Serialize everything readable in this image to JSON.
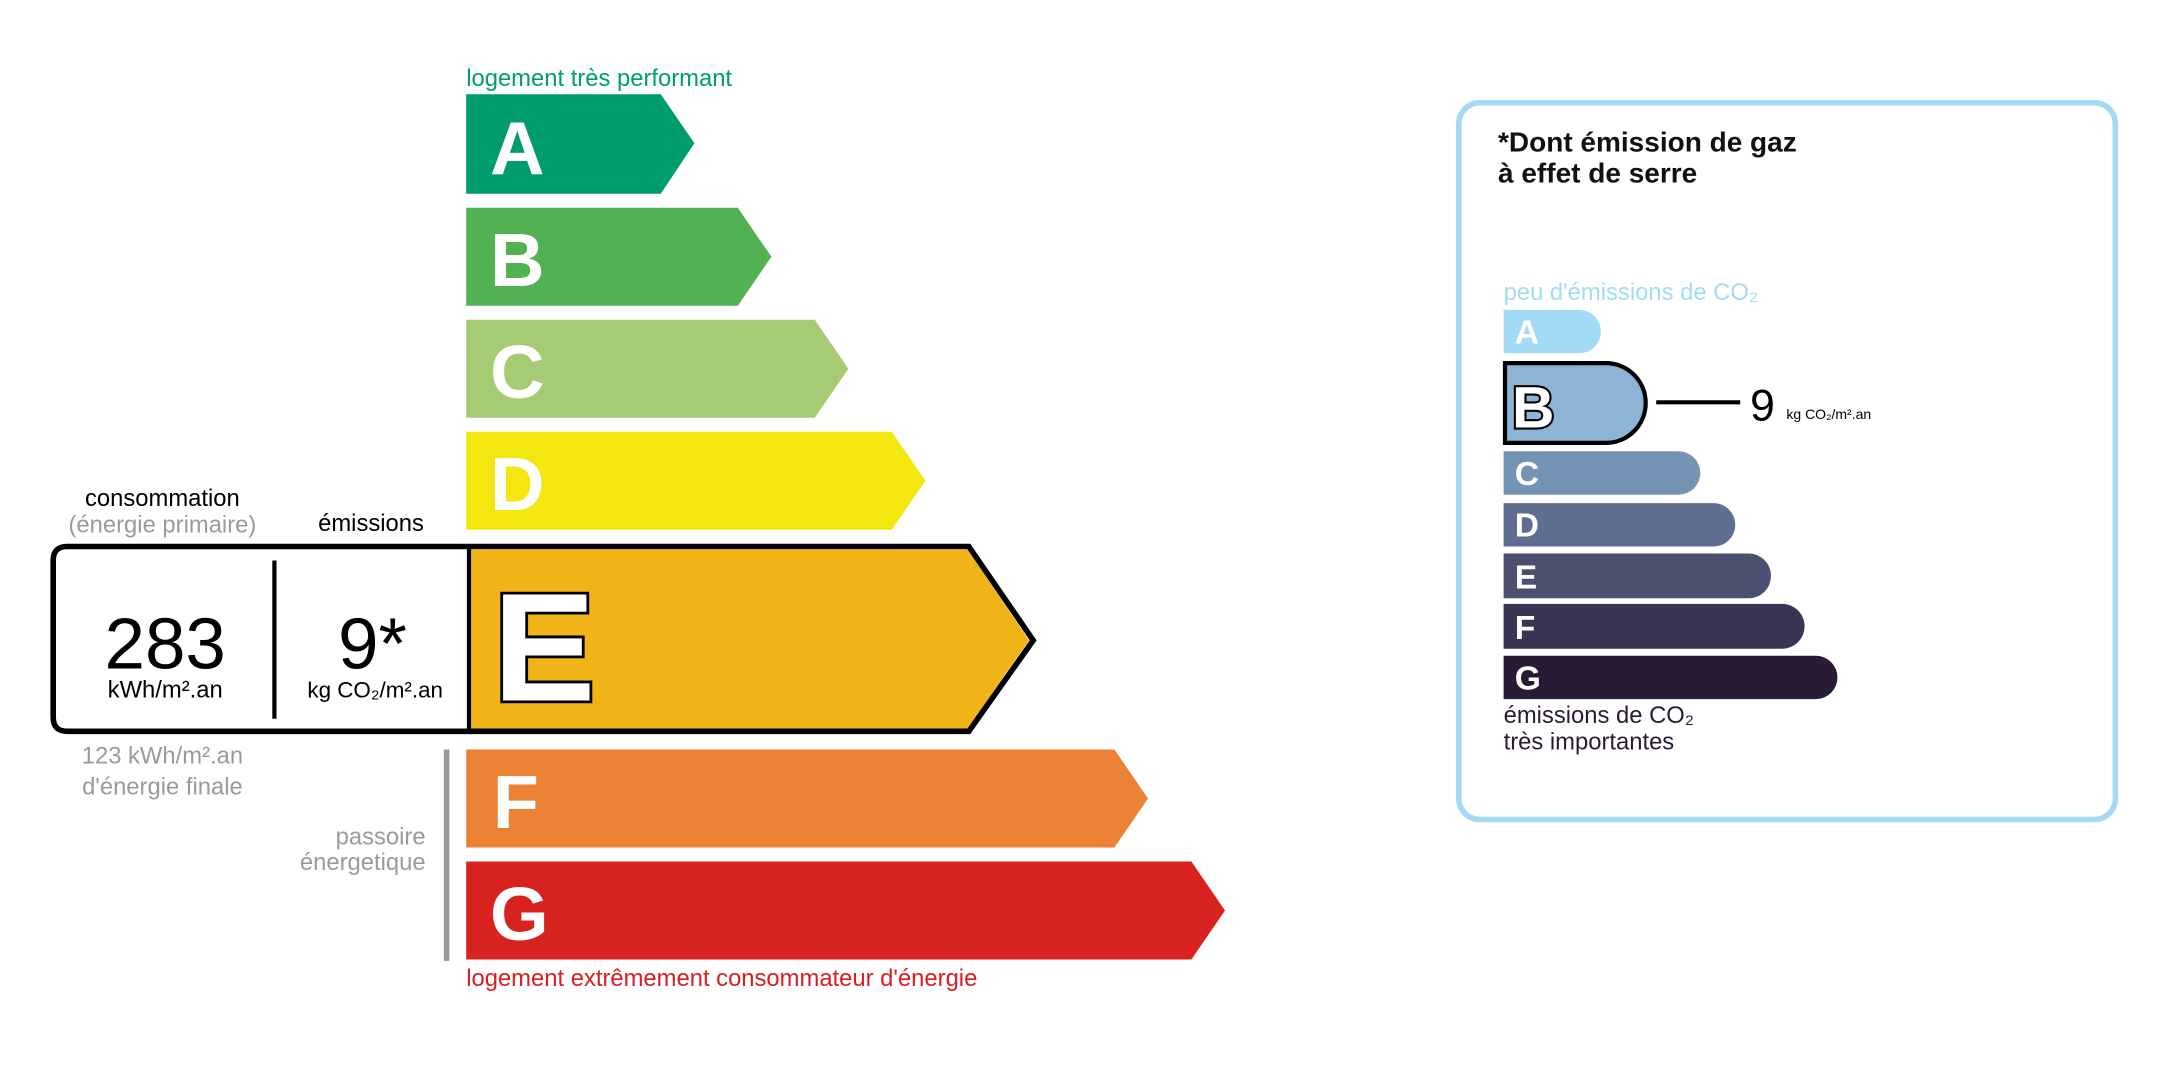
{
  "energy": {
    "top_label": "logement très performant",
    "bottom_label": "logement extrêmement consommateur d'énergie",
    "classes": [
      {
        "letter": "A",
        "color": "#009c6d"
      },
      {
        "letter": "B",
        "color": "#52b153"
      },
      {
        "letter": "C",
        "color": "#a5cc74"
      },
      {
        "letter": "D",
        "color": "#f4e70f"
      },
      {
        "letter": "E",
        "color": "#f0b418"
      },
      {
        "letter": "F",
        "color": "#eb8235"
      },
      {
        "letter": "G",
        "color": "#d7221f"
      }
    ],
    "current_class": "E",
    "consumption_label": "consommation",
    "consumption_sublabel": "(énergie primaire)",
    "emissions_label": "émissions",
    "consumption_value": "283",
    "consumption_unit": "kWh/m².an",
    "emissions_value": "9*",
    "emissions_unit": "kg CO₂/m².an",
    "final_energy_line1": "123 kWh/m².an",
    "final_energy_line2": "d'énergie finale",
    "passoire_line1": "passoire",
    "passoire_line2": "énergetique"
  },
  "ges": {
    "title_line1": "*Dont émission de gaz",
    "title_line2": "à effet de serre",
    "top_label": "peu d'émissions de CO₂",
    "bottom_label_line1": "émissions de CO₂",
    "bottom_label_line2": "très importantes",
    "classes": [
      {
        "letter": "A",
        "color": "#a3dbf7"
      },
      {
        "letter": "B",
        "color": "#8db4d5"
      },
      {
        "letter": "C",
        "color": "#7493b5"
      },
      {
        "letter": "D",
        "color": "#5f6e90"
      },
      {
        "letter": "E",
        "color": "#4d4f6e"
      },
      {
        "letter": "F",
        "color": "#393552"
      },
      {
        "letter": "G",
        "color": "#2a1b34"
      }
    ],
    "current_class": "B",
    "value": "9",
    "unit": "kg CO₂/m².an",
    "border_color": "#a3d9f5"
  }
}
